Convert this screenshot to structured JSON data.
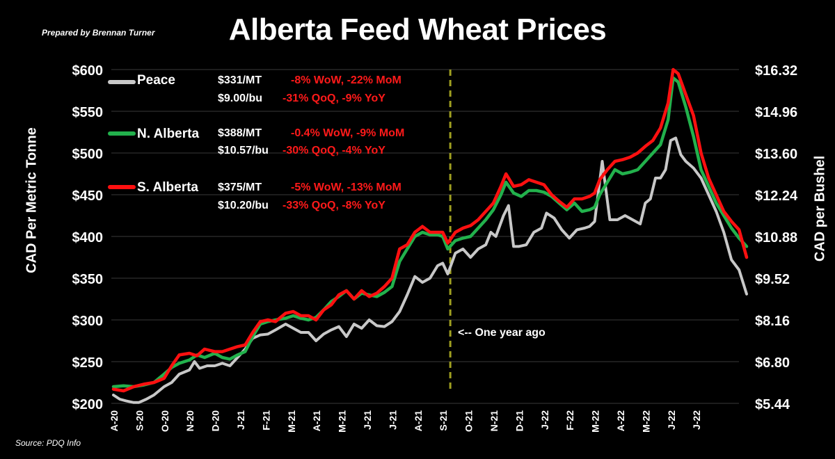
{
  "header": {
    "title": "Alberta Feed Wheat Prices",
    "prepared_by": "Prepared by Brennan Turner",
    "source": "Source: PDQ Info"
  },
  "legend": {
    "peace": {
      "name": "Peace",
      "mt": "$331/MT",
      "mt_change": "-8% WoW, -22% MoM",
      "bu": "$9.00/bu",
      "bu_change": "-31% QoQ, -9% YoY"
    },
    "north": {
      "name": "N. Alberta",
      "mt": "$388/MT",
      "mt_change": "-0.4% WoW, -9% MoM",
      "bu": "$10.57/bu",
      "bu_change": "-30% QoQ,  -4% YoY"
    },
    "south": {
      "name": "S. Alberta",
      "mt": "$375/MT",
      "mt_change": "-5% WoW, -13% MoM",
      "bu": "$10.20/bu",
      "bu_change": "-33% QoQ, -8% YoY"
    }
  },
  "annotation": "<-- One year ago",
  "chart_data": {
    "type": "line",
    "title": "Alberta Feed Wheat Prices",
    "ylabel": "CAD Per Metric Tonne",
    "y2label": "CAD per Bushel",
    "ylim": [
      200,
      600
    ],
    "y2lim": [
      5.44,
      16.32
    ],
    "yticks": [
      "$200",
      "$250",
      "$300",
      "$350",
      "$400",
      "$450",
      "$500",
      "$550",
      "$600"
    ],
    "y2ticks": [
      "$5.44",
      "$6.80",
      "$8.16",
      "$9.52",
      "$10.88",
      "$12.24",
      "$13.60",
      "$14.96",
      "$16.32"
    ],
    "xticks": [
      "A-20",
      "S-20",
      "O-20",
      "N-20",
      "D-20",
      "J-21",
      "F-21",
      "M-21",
      "A-21",
      "M-21",
      "J-21",
      "J-21",
      "A-21",
      "S-21",
      "O-21",
      "N-21",
      "D-21",
      "J-22",
      "F-22",
      "M-22",
      "A-22",
      "M-22",
      "J-22",
      "J-22"
    ],
    "grid": "horizontal",
    "legend_position": "top-left",
    "colors": {
      "peace": "#c8c8c8",
      "north": "#22b14c",
      "south": "#ff1010",
      "marker": "#a0a020"
    },
    "one_year_ago_index": 13.3,
    "series": [
      {
        "name": "Peace",
        "points": [
          [
            0,
            210
          ],
          [
            0.25,
            205
          ],
          [
            0.5,
            203
          ],
          [
            0.8,
            201
          ],
          [
            1,
            201
          ],
          [
            1.3,
            205
          ],
          [
            1.6,
            210
          ],
          [
            2,
            220
          ],
          [
            2.3,
            225
          ],
          [
            2.6,
            235
          ],
          [
            3,
            240
          ],
          [
            3.2,
            250
          ],
          [
            3.4,
            242
          ],
          [
            3.7,
            245
          ],
          [
            4,
            245
          ],
          [
            4.3,
            248
          ],
          [
            4.6,
            245
          ],
          [
            4.9,
            255
          ],
          [
            5.2,
            265
          ],
          [
            5.5,
            278
          ],
          [
            5.8,
            282
          ],
          [
            6.1,
            283
          ],
          [
            6.4,
            288
          ],
          [
            6.8,
            295
          ],
          [
            7.1,
            290
          ],
          [
            7.4,
            285
          ],
          [
            7.7,
            285
          ],
          [
            8,
            275
          ],
          [
            8.3,
            283
          ],
          [
            8.6,
            288
          ],
          [
            8.9,
            292
          ],
          [
            9.2,
            280
          ],
          [
            9.5,
            295
          ],
          [
            9.8,
            290
          ],
          [
            10.1,
            300
          ],
          [
            10.4,
            293
          ],
          [
            10.7,
            292
          ],
          [
            11,
            298
          ],
          [
            11.3,
            310
          ],
          [
            11.6,
            330
          ],
          [
            11.9,
            352
          ],
          [
            12.2,
            345
          ],
          [
            12.5,
            350
          ],
          [
            12.8,
            365
          ],
          [
            13.0,
            368
          ],
          [
            13.2,
            355
          ],
          [
            13.5,
            380
          ],
          [
            13.8,
            385
          ],
          [
            14.1,
            375
          ],
          [
            14.4,
            385
          ],
          [
            14.7,
            390
          ],
          [
            14.9,
            405
          ],
          [
            15.1,
            400
          ],
          [
            15.4,
            425
          ],
          [
            15.6,
            437
          ],
          [
            15.8,
            388
          ],
          [
            16.0,
            388
          ],
          [
            16.3,
            390
          ],
          [
            16.6,
            405
          ],
          [
            16.9,
            410
          ],
          [
            17.1,
            428
          ],
          [
            17.4,
            422
          ],
          [
            17.7,
            408
          ],
          [
            18.0,
            398
          ],
          [
            18.3,
            408
          ],
          [
            18.6,
            410
          ],
          [
            18.8,
            412
          ],
          [
            19.0,
            418
          ],
          [
            19.3,
            490
          ],
          [
            19.6,
            420
          ],
          [
            19.9,
            420
          ],
          [
            20.2,
            425
          ],
          [
            20.5,
            420
          ],
          [
            20.8,
            415
          ],
          [
            21.0,
            440
          ],
          [
            21.2,
            445
          ],
          [
            21.4,
            470
          ],
          [
            21.6,
            470
          ],
          [
            21.8,
            480
          ],
          [
            22.0,
            515
          ],
          [
            22.2,
            518
          ],
          [
            22.4,
            498
          ],
          [
            22.6,
            490
          ],
          [
            22.9,
            482
          ],
          [
            23.2,
            470
          ],
          [
            23.5,
            450
          ],
          [
            23.8,
            430
          ],
          [
            24.1,
            405
          ],
          [
            24.4,
            372
          ],
          [
            24.7,
            360
          ],
          [
            25.0,
            331
          ]
        ]
      },
      {
        "name": "N. Alberta",
        "points": [
          [
            0,
            220
          ],
          [
            0.4,
            221
          ],
          [
            0.8,
            220
          ],
          [
            1.2,
            222
          ],
          [
            1.6,
            225
          ],
          [
            2,
            235
          ],
          [
            2.3,
            243
          ],
          [
            2.6,
            248
          ],
          [
            3,
            252
          ],
          [
            3.3,
            258
          ],
          [
            3.6,
            255
          ],
          [
            4,
            260
          ],
          [
            4.3,
            255
          ],
          [
            4.6,
            253
          ],
          [
            4.9,
            258
          ],
          [
            5.2,
            262
          ],
          [
            5.5,
            280
          ],
          [
            5.8,
            295
          ],
          [
            6.1,
            298
          ],
          [
            6.4,
            300
          ],
          [
            6.8,
            302
          ],
          [
            7.1,
            305
          ],
          [
            7.4,
            302
          ],
          [
            7.7,
            300
          ],
          [
            8,
            303
          ],
          [
            8.3,
            312
          ],
          [
            8.6,
            322
          ],
          [
            8.9,
            328
          ],
          [
            9.2,
            335
          ],
          [
            9.5,
            325
          ],
          [
            9.8,
            332
          ],
          [
            10.1,
            330
          ],
          [
            10.4,
            328
          ],
          [
            10.7,
            333
          ],
          [
            11,
            340
          ],
          [
            11.3,
            370
          ],
          [
            11.6,
            385
          ],
          [
            11.9,
            400
          ],
          [
            12.2,
            405
          ],
          [
            12.5,
            402
          ],
          [
            12.8,
            402
          ],
          [
            13.0,
            400
          ],
          [
            13.2,
            385
          ],
          [
            13.5,
            395
          ],
          [
            13.8,
            398
          ],
          [
            14.1,
            400
          ],
          [
            14.4,
            410
          ],
          [
            14.7,
            420
          ],
          [
            15.0,
            432
          ],
          [
            15.3,
            450
          ],
          [
            15.5,
            465
          ],
          [
            15.8,
            452
          ],
          [
            16.1,
            448
          ],
          [
            16.4,
            455
          ],
          [
            16.7,
            455
          ],
          [
            17.0,
            453
          ],
          [
            17.3,
            448
          ],
          [
            17.6,
            440
          ],
          [
            17.9,
            432
          ],
          [
            18.2,
            440
          ],
          [
            18.5,
            430
          ],
          [
            18.8,
            432
          ],
          [
            19.0,
            435
          ],
          [
            19.2,
            450
          ],
          [
            19.5,
            465
          ],
          [
            19.8,
            480
          ],
          [
            20.1,
            475
          ],
          [
            20.4,
            477
          ],
          [
            20.7,
            480
          ],
          [
            21.0,
            490
          ],
          [
            21.3,
            500
          ],
          [
            21.6,
            510
          ],
          [
            21.9,
            540
          ],
          [
            22.1,
            590
          ],
          [
            22.3,
            585
          ],
          [
            22.6,
            555
          ],
          [
            22.9,
            520
          ],
          [
            23.2,
            480
          ],
          [
            23.5,
            460
          ],
          [
            23.8,
            440
          ],
          [
            24.1,
            425
          ],
          [
            24.4,
            410
          ],
          [
            24.7,
            398
          ],
          [
            25.0,
            388
          ]
        ]
      },
      {
        "name": "S. Alberta",
        "points": [
          [
            0,
            217
          ],
          [
            0.4,
            215
          ],
          [
            0.8,
            220
          ],
          [
            1.2,
            223
          ],
          [
            1.6,
            225
          ],
          [
            2,
            230
          ],
          [
            2.3,
            245
          ],
          [
            2.6,
            258
          ],
          [
            3,
            260
          ],
          [
            3.3,
            257
          ],
          [
            3.6,
            265
          ],
          [
            4,
            262
          ],
          [
            4.3,
            262
          ],
          [
            4.6,
            265
          ],
          [
            4.9,
            268
          ],
          [
            5.2,
            270
          ],
          [
            5.5,
            285
          ],
          [
            5.8,
            298
          ],
          [
            6.1,
            300
          ],
          [
            6.4,
            298
          ],
          [
            6.8,
            308
          ],
          [
            7.1,
            310
          ],
          [
            7.4,
            305
          ],
          [
            7.7,
            305
          ],
          [
            8,
            300
          ],
          [
            8.3,
            312
          ],
          [
            8.6,
            318
          ],
          [
            8.9,
            330
          ],
          [
            9.2,
            335
          ],
          [
            9.5,
            325
          ],
          [
            9.8,
            335
          ],
          [
            10.1,
            328
          ],
          [
            10.4,
            332
          ],
          [
            10.7,
            340
          ],
          [
            11,
            350
          ],
          [
            11.3,
            385
          ],
          [
            11.6,
            390
          ],
          [
            11.9,
            405
          ],
          [
            12.2,
            412
          ],
          [
            12.5,
            405
          ],
          [
            12.8,
            405
          ],
          [
            13.0,
            405
          ],
          [
            13.2,
            392
          ],
          [
            13.5,
            405
          ],
          [
            13.8,
            410
          ],
          [
            14.1,
            413
          ],
          [
            14.4,
            420
          ],
          [
            14.7,
            430
          ],
          [
            15.0,
            440
          ],
          [
            15.3,
            460
          ],
          [
            15.5,
            475
          ],
          [
            15.8,
            460
          ],
          [
            16.1,
            462
          ],
          [
            16.4,
            468
          ],
          [
            16.7,
            465
          ],
          [
            17.0,
            462
          ],
          [
            17.3,
            450
          ],
          [
            17.6,
            442
          ],
          [
            17.9,
            435
          ],
          [
            18.2,
            445
          ],
          [
            18.5,
            445
          ],
          [
            18.8,
            448
          ],
          [
            19.0,
            452
          ],
          [
            19.2,
            468
          ],
          [
            19.5,
            480
          ],
          [
            19.8,
            490
          ],
          [
            20.1,
            492
          ],
          [
            20.4,
            495
          ],
          [
            20.7,
            500
          ],
          [
            21.0,
            508
          ],
          [
            21.3,
            515
          ],
          [
            21.6,
            530
          ],
          [
            21.9,
            560
          ],
          [
            22.1,
            600
          ],
          [
            22.3,
            595
          ],
          [
            22.6,
            570
          ],
          [
            22.9,
            545
          ],
          [
            23.2,
            500
          ],
          [
            23.5,
            470
          ],
          [
            23.8,
            450
          ],
          [
            24.1,
            430
          ],
          [
            24.4,
            418
          ],
          [
            24.7,
            408
          ],
          [
            25.0,
            375
          ]
        ]
      }
    ]
  }
}
